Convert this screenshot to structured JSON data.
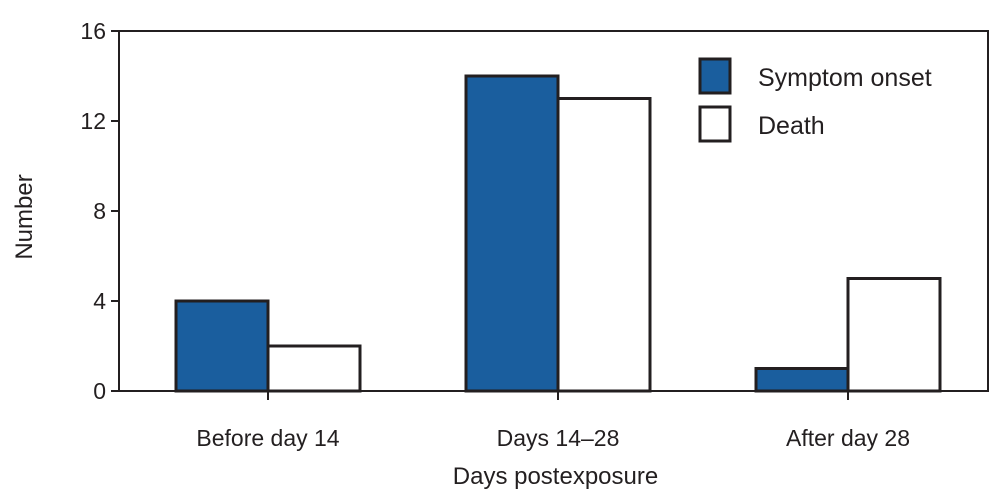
{
  "chart_data": {
    "type": "bar",
    "title": "",
    "xlabel": "Days postexposure",
    "ylabel": "Number",
    "categories": [
      "Before day 14",
      "Days 14–28",
      "After day 28"
    ],
    "series": [
      {
        "name": "Symptom onset",
        "values": [
          4,
          14,
          1
        ],
        "color": "#1a5e9e"
      },
      {
        "name": "Death",
        "values": [
          2,
          13,
          5
        ],
        "color": "#ffffff"
      }
    ],
    "ylim": [
      0,
      16
    ],
    "yticks": [
      "0",
      "4",
      "8",
      "12",
      "16"
    ],
    "grid": false,
    "legend": "top-right",
    "bar_outline_color": "#231f20"
  }
}
